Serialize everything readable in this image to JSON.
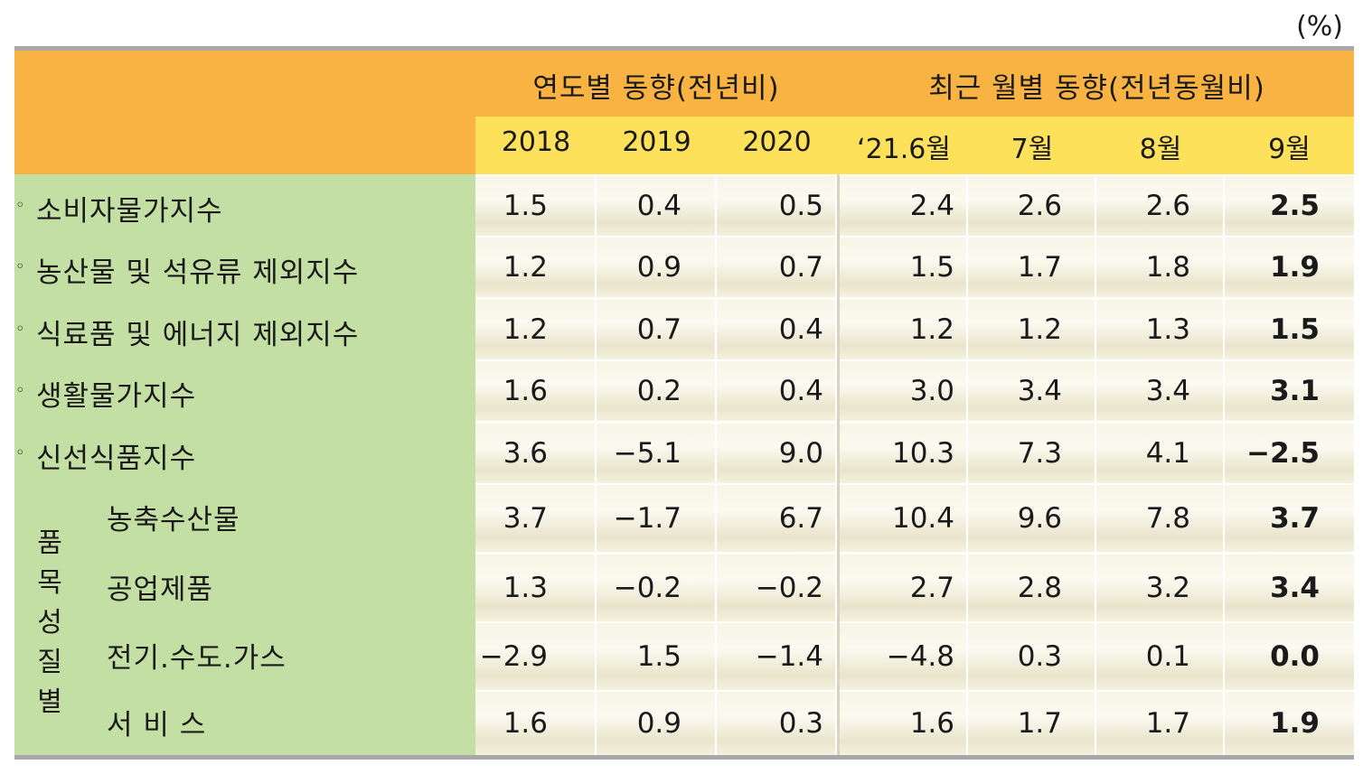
{
  "unit": "(%)",
  "header": {
    "annual_group": "연도별 동향(전년비)",
    "monthly_group": "최근 월별 동향(전년동월비)",
    "columns": [
      "2018",
      "2019",
      "2020",
      "‘21.6월",
      "7월",
      "8월",
      "9월"
    ]
  },
  "rows": [
    {
      "label": "소비자물가지수",
      "bullet": "◦",
      "values": [
        "1.5",
        "0.4",
        "0.5",
        "2.4",
        "2.6",
        "2.6",
        "2.5"
      ]
    },
    {
      "label": "농산물 및 석유류 제외지수",
      "bullet": "◦",
      "values": [
        "1.2",
        "0.9",
        "0.7",
        "1.5",
        "1.7",
        "1.8",
        "1.9"
      ]
    },
    {
      "label": "식료품 및 에너지 제외지수",
      "bullet": "◦",
      "values": [
        "1.2",
        "0.7",
        "0.4",
        "1.2",
        "1.2",
        "1.3",
        "1.5"
      ]
    },
    {
      "label": "생활물가지수",
      "bullet": "◦",
      "values": [
        "1.6",
        "0.2",
        "0.4",
        "3.0",
        "3.4",
        "3.4",
        "3.1"
      ]
    },
    {
      "label": "신선식품지수",
      "bullet": "◦",
      "values": [
        "3.6",
        "−5.1",
        "9.0",
        "10.3",
        "7.3",
        "4.1",
        "−2.5"
      ]
    },
    {
      "label": "농축수산물",
      "values": [
        "3.7",
        "−1.7",
        "6.7",
        "10.4",
        "9.6",
        "7.8",
        "3.7"
      ]
    },
    {
      "label": "공업제품",
      "values": [
        "1.3",
        "−0.2",
        "−0.2",
        "2.7",
        "2.8",
        "3.2",
        "3.4"
      ]
    },
    {
      "label": "전기.수도.가스",
      "values": [
        "−2.9",
        "1.5",
        "−1.4",
        "−4.8",
        "0.3",
        "0.1",
        "0.0"
      ]
    },
    {
      "label": "서 비 스",
      "values": [
        "1.6",
        "0.9",
        "0.3",
        "1.6",
        "1.7",
        "1.7",
        "1.9"
      ]
    }
  ],
  "group_label": [
    "품",
    "목",
    "성",
    "질",
    "별"
  ],
  "colors": {
    "header_orange": "#f8b342",
    "header_yellow": "#fde15a",
    "label_green": "#c4dfa4",
    "rule_gray": "#a8a8a8"
  }
}
